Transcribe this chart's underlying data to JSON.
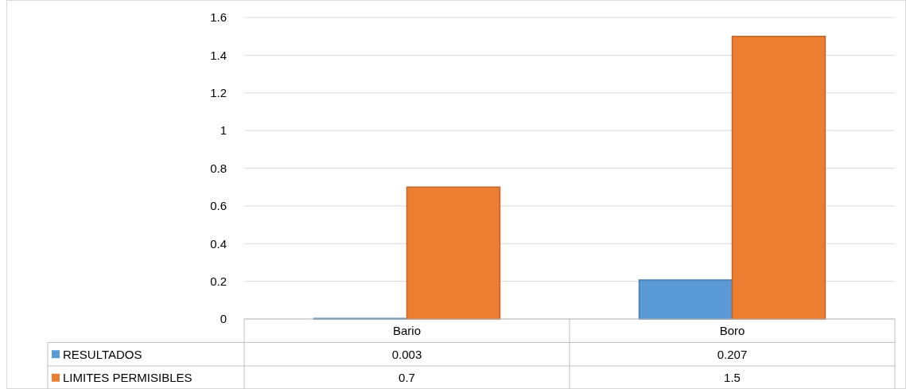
{
  "chart_data": {
    "type": "bar",
    "categories": [
      "Bario",
      "Boro"
    ],
    "series": [
      {
        "name": "RESULTADOS",
        "color": "#5b9bd5",
        "values": [
          0.003,
          0.207
        ]
      },
      {
        "name": "LIMITES PERMISIBLES",
        "color": "#ed7d31",
        "values": [
          0.7,
          1.5
        ]
      }
    ],
    "ylim": [
      0,
      1.6
    ],
    "yticks": [
      0,
      0.2,
      0.4,
      0.6,
      0.8,
      1,
      1.2,
      1.4,
      1.6
    ],
    "grid": "y",
    "legend": "bottom",
    "data_labels": true
  }
}
